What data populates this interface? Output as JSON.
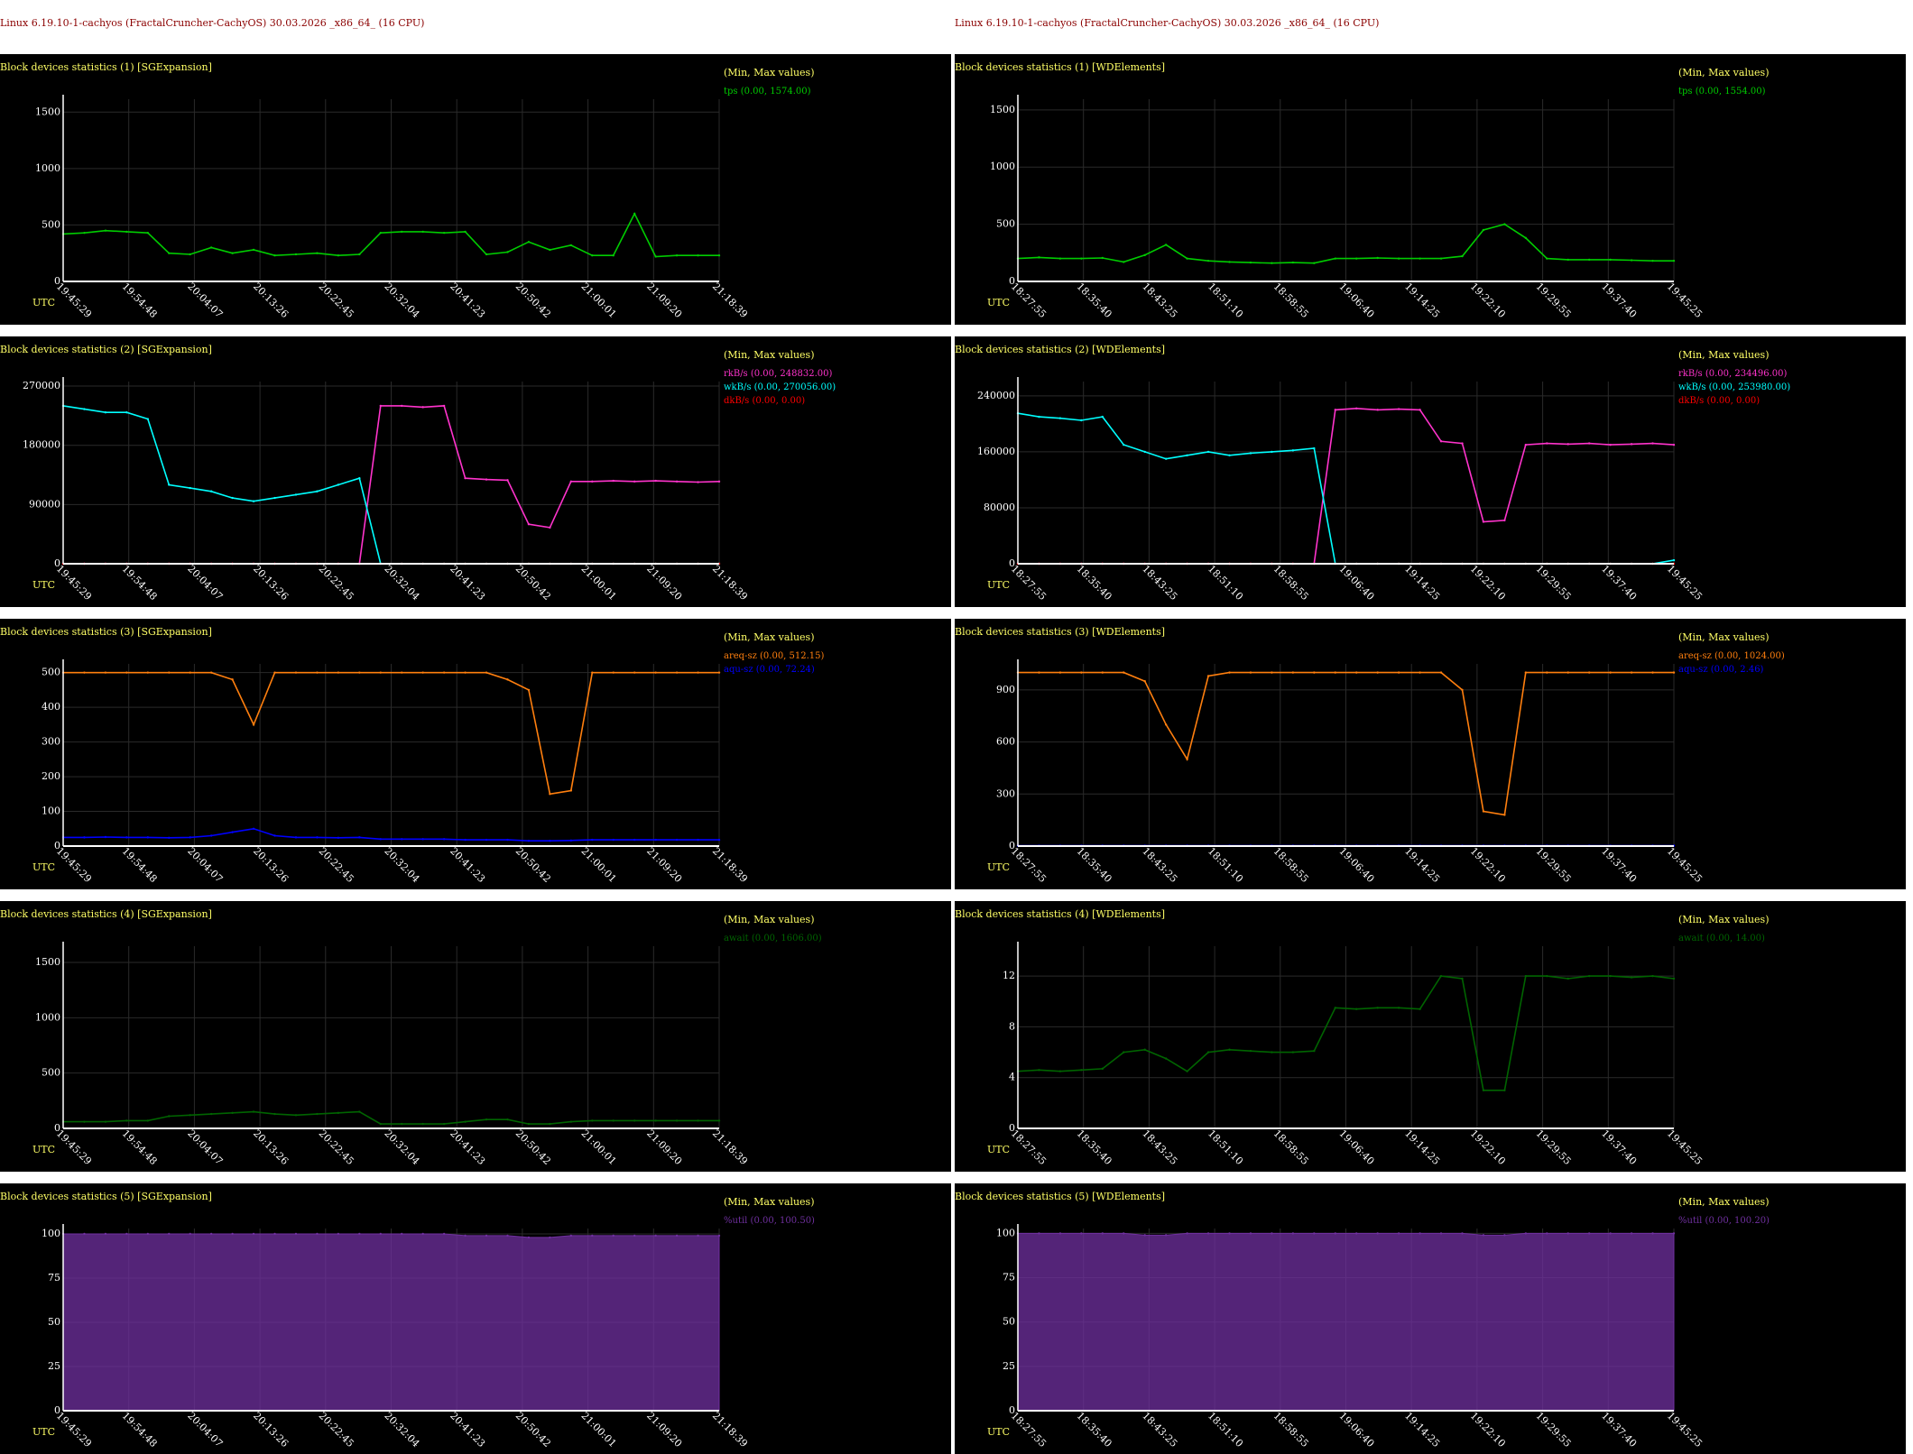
{
  "header": {
    "left": "Linux 6.19.10-1-cachyos (FractalCruncher-CachyOS) 30.03.2026 _x86_64_ (16 CPU)",
    "right": "Linux 6.19.10-1-cachyos (FractalCruncher-CachyOS) 30.03.2026 _x86_64_ (16 CPU)"
  },
  "minmax_label": "(Min, Max values)",
  "utc_label": "UTC",
  "colors": {
    "background": "#000000",
    "header_text": "#8b0000",
    "title_text": "#ffff66",
    "axis": "#ffffff",
    "grid": "#2a2a2a"
  },
  "chart_data": [
    {
      "id": "sg1",
      "type": "line",
      "title": "Block devices statistics (1) [SGExpansion]",
      "yticks": [
        "1500",
        "1000",
        "500",
        "0"
      ],
      "ytick_values": [
        1500,
        1000,
        500,
        0
      ],
      "ylim": [
        0,
        1574
      ],
      "xticks": [
        "19:45:29",
        "19:54:48",
        "20:04:07",
        "20:13:26",
        "20:22:45",
        "20:32:04",
        "20:41:23",
        "20:50:42",
        "21:00:01",
        "21:09:20",
        "21:18:39"
      ],
      "series": [
        {
          "name": "tps (0.00, 1574.00)",
          "color": "#00cc00",
          "values": [
            420,
            430,
            450,
            440,
            430,
            250,
            240,
            300,
            250,
            280,
            230,
            240,
            250,
            230,
            240,
            430,
            440,
            440,
            430,
            440,
            240,
            260,
            350,
            280,
            320,
            230,
            230,
            600,
            220,
            230,
            230,
            230
          ]
        }
      ]
    },
    {
      "id": "wd1",
      "type": "line",
      "title": "Block devices statistics (1) [WDElements]",
      "yticks": [
        "1500",
        "1000",
        "500",
        "0"
      ],
      "ytick_values": [
        1500,
        1000,
        500,
        0
      ],
      "ylim": [
        0,
        1554
      ],
      "xticks": [
        "18:27:55",
        "18:35:40",
        "18:43:25",
        "18:51:10",
        "18:58:55",
        "19:06:40",
        "19:14:25",
        "19:22:10",
        "19:29:55",
        "19:37:40",
        "19:45:25"
      ],
      "series": [
        {
          "name": "tps (0.00, 1554.00)",
          "color": "#00cc00",
          "values": [
            200,
            210,
            200,
            200,
            205,
            170,
            230,
            320,
            200,
            180,
            170,
            165,
            160,
            165,
            160,
            200,
            200,
            205,
            200,
            200,
            200,
            220,
            450,
            500,
            380,
            200,
            190,
            190,
            190,
            185,
            180,
            180
          ]
        }
      ]
    },
    {
      "id": "sg2",
      "type": "line",
      "title": "Block devices statistics (2) [SGExpansion]",
      "yticks": [
        "270000",
        "180000",
        "90000",
        "0"
      ],
      "ytick_values": [
        270000,
        180000,
        90000,
        0
      ],
      "ylim": [
        0,
        270056
      ],
      "xticks": [
        "19:45:29",
        "19:54:48",
        "20:04:07",
        "20:13:26",
        "20:22:45",
        "20:32:04",
        "20:41:23",
        "20:50:42",
        "21:00:01",
        "21:09:20",
        "21:18:39"
      ],
      "series": [
        {
          "name": "rkB/s (0.00, 248832.00)",
          "color": "#ff33cc",
          "values": [
            0,
            0,
            0,
            0,
            0,
            0,
            0,
            0,
            0,
            0,
            0,
            0,
            0,
            0,
            0,
            240000,
            240000,
            238000,
            240000,
            130000,
            128000,
            127000,
            60000,
            55000,
            125000,
            125000,
            126000,
            125000,
            126000,
            125000,
            124000,
            125000
          ]
        },
        {
          "name": "wkB/s (0.00, 270056.00)",
          "color": "#00ffff",
          "values": [
            240000,
            235000,
            230000,
            230000,
            220000,
            120000,
            115000,
            110000,
            100000,
            95000,
            100000,
            105000,
            110000,
            120000,
            130000,
            0,
            0,
            0,
            0,
            0,
            0,
            0,
            0,
            0,
            0,
            0,
            0,
            0,
            0,
            0,
            0,
            0
          ]
        },
        {
          "name": "dkB/s (0.00, 0.00)",
          "color": "#ff0000",
          "values": [
            0,
            0,
            0,
            0,
            0,
            0,
            0,
            0,
            0,
            0,
            0,
            0,
            0,
            0,
            0,
            0,
            0,
            0,
            0,
            0,
            0,
            0,
            0,
            0,
            0,
            0,
            0,
            0,
            0,
            0,
            0,
            0
          ]
        }
      ]
    },
    {
      "id": "wd2",
      "type": "line",
      "title": "Block devices statistics (2) [WDElements]",
      "yticks": [
        "240000",
        "160000",
        "80000",
        "0"
      ],
      "ytick_values": [
        240000,
        160000,
        80000,
        0
      ],
      "ylim": [
        0,
        253980
      ],
      "xticks": [
        "18:27:55",
        "18:35:40",
        "18:43:25",
        "18:51:10",
        "18:58:55",
        "19:06:40",
        "19:14:25",
        "19:22:10",
        "19:29:55",
        "19:37:40",
        "19:45:25"
      ],
      "series": [
        {
          "name": "rkB/s (0.00, 234496.00)",
          "color": "#ff33cc",
          "values": [
            0,
            0,
            0,
            0,
            0,
            0,
            0,
            0,
            0,
            0,
            0,
            0,
            0,
            0,
            0,
            220000,
            222000,
            220000,
            221000,
            220000,
            175000,
            172000,
            60000,
            62000,
            170000,
            172000,
            171000,
            172000,
            170000,
            171000,
            172000,
            170000
          ]
        },
        {
          "name": "wkB/s (0.00, 253980.00)",
          "color": "#00ffff",
          "values": [
            215000,
            210000,
            208000,
            205000,
            210000,
            170000,
            160000,
            150000,
            155000,
            160000,
            155000,
            158000,
            160000,
            162000,
            165000,
            0,
            0,
            0,
            0,
            0,
            0,
            0,
            0,
            0,
            0,
            0,
            0,
            0,
            0,
            0,
            0,
            5000
          ]
        },
        {
          "name": "dkB/s (0.00, 0.00)",
          "color": "#ff0000",
          "values": [
            0,
            0,
            0,
            0,
            0,
            0,
            0,
            0,
            0,
            0,
            0,
            0,
            0,
            0,
            0,
            0,
            0,
            0,
            0,
            0,
            0,
            0,
            0,
            0,
            0,
            0,
            0,
            0,
            0,
            0,
            0,
            0
          ]
        }
      ]
    },
    {
      "id": "sg3",
      "type": "line",
      "title": "Block devices statistics (3) [SGExpansion]",
      "yticks": [
        "500",
        "400",
        "300",
        "200",
        "100",
        "0"
      ],
      "ytick_values": [
        500,
        400,
        300,
        200,
        100,
        0
      ],
      "ylim": [
        0,
        512.15
      ],
      "xticks": [
        "19:45:29",
        "19:54:48",
        "20:04:07",
        "20:13:26",
        "20:22:45",
        "20:32:04",
        "20:41:23",
        "20:50:42",
        "21:00:01",
        "21:09:20",
        "21:18:39"
      ],
      "series": [
        {
          "name": "areq-sz (0.00, 512.15)",
          "color": "#ff7f0e",
          "values": [
            500,
            500,
            500,
            500,
            500,
            500,
            500,
            500,
            480,
            350,
            500,
            500,
            500,
            500,
            500,
            500,
            500,
            500,
            500,
            500,
            500,
            480,
            450,
            150,
            160,
            500,
            500,
            500,
            500,
            500,
            500,
            500
          ]
        },
        {
          "name": "aqu-sz (0.00, 72.24)",
          "color": "#0000ff",
          "values": [
            25,
            25,
            26,
            25,
            25,
            24,
            25,
            30,
            40,
            50,
            30,
            25,
            25,
            24,
            25,
            20,
            20,
            20,
            20,
            18,
            18,
            18,
            15,
            15,
            16,
            18,
            18,
            18,
            18,
            18,
            18,
            18
          ]
        }
      ]
    },
    {
      "id": "wd3",
      "type": "line",
      "title": "Block devices statistics (3) [WDElements]",
      "yticks": [
        "900",
        "600",
        "300",
        "0"
      ],
      "ytick_values": [
        900,
        600,
        300,
        0
      ],
      "ylim": [
        0,
        1024
      ],
      "xticks": [
        "18:27:55",
        "18:35:40",
        "18:43:25",
        "18:51:10",
        "18:58:55",
        "19:06:40",
        "19:14:25",
        "19:22:10",
        "19:29:55",
        "19:37:40",
        "19:45:25"
      ],
      "series": [
        {
          "name": "areq-sz (0.00, 1024.00)",
          "color": "#ff7f0e",
          "values": [
            1000,
            1000,
            1000,
            1000,
            1000,
            1000,
            950,
            700,
            500,
            980,
            1000,
            1000,
            1000,
            1000,
            1000,
            1000,
            1000,
            1000,
            1000,
            1000,
            1000,
            900,
            200,
            180,
            1000,
            1000,
            1000,
            1000,
            1000,
            1000,
            1000,
            1000
          ]
        },
        {
          "name": "aqu-sz (0.00, 2.46)",
          "color": "#0000ff",
          "values": [
            2,
            2,
            2,
            2,
            2,
            2,
            2,
            2,
            2,
            2,
            2,
            2,
            2,
            2,
            2,
            2,
            2,
            2,
            2,
            2,
            2,
            2,
            2,
            2,
            2,
            2,
            2,
            2,
            2,
            2,
            2,
            2
          ]
        }
      ]
    },
    {
      "id": "sg4",
      "type": "line",
      "title": "Block devices statistics (4) [SGExpansion]",
      "yticks": [
        "1500",
        "1000",
        "500",
        "0"
      ],
      "ytick_values": [
        1500,
        1000,
        500,
        0
      ],
      "ylim": [
        0,
        1606
      ],
      "xticks": [
        "19:45:29",
        "19:54:48",
        "20:04:07",
        "20:13:26",
        "20:22:45",
        "20:32:04",
        "20:41:23",
        "20:50:42",
        "21:00:01",
        "21:09:20",
        "21:18:39"
      ],
      "series": [
        {
          "name": "await (0.00, 1606.00)",
          "color": "#006400",
          "values": [
            60,
            60,
            60,
            70,
            70,
            110,
            120,
            130,
            140,
            150,
            130,
            120,
            130,
            140,
            150,
            40,
            40,
            40,
            40,
            60,
            80,
            80,
            40,
            40,
            60,
            70,
            70,
            70,
            70,
            70,
            70,
            70
          ]
        }
      ]
    },
    {
      "id": "wd4",
      "type": "line",
      "title": "Block devices statistics (4) [WDElements]",
      "yticks": [
        "12",
        "8",
        "4",
        "0"
      ],
      "ytick_values": [
        12,
        8,
        4,
        0
      ],
      "ylim": [
        0,
        14
      ],
      "xticks": [
        "18:27:55",
        "18:35:40",
        "18:43:25",
        "18:51:10",
        "18:58:55",
        "19:06:40",
        "19:14:25",
        "19:22:10",
        "19:29:55",
        "19:37:40",
        "19:45:25"
      ],
      "series": [
        {
          "name": "await (0.00, 14.00)",
          "color": "#006400",
          "values": [
            4.5,
            4.6,
            4.5,
            4.6,
            4.7,
            6,
            6.2,
            5.5,
            4.5,
            6,
            6.2,
            6.1,
            6,
            6,
            6.1,
            9.5,
            9.4,
            9.5,
            9.5,
            9.4,
            12,
            11.8,
            3,
            3,
            12,
            12,
            11.8,
            12,
            12,
            11.9,
            12,
            11.8
          ]
        }
      ]
    },
    {
      "id": "sg5",
      "type": "area",
      "title": "Block devices statistics (5) [SGExpansion]",
      "yticks": [
        "100",
        "75",
        "50",
        "25",
        "0"
      ],
      "ytick_values": [
        100,
        75,
        50,
        25,
        0
      ],
      "ylim": [
        0,
        100.5
      ],
      "xticks": [
        "19:45:29",
        "19:54:48",
        "20:04:07",
        "20:13:26",
        "20:22:45",
        "20:32:04",
        "20:41:23",
        "20:50:42",
        "21:00:01",
        "21:09:20",
        "21:18:39"
      ],
      "series": [
        {
          "name": "%util (0.00, 100.50)",
          "color": "#7030a0",
          "values": [
            100,
            100,
            100,
            100,
            100,
            100,
            100,
            100,
            100,
            100,
            100,
            100,
            100,
            100,
            100,
            100,
            100,
            100,
            100,
            99,
            99,
            99,
            98,
            98,
            99,
            99,
            99,
            99,
            99,
            99,
            99,
            99
          ]
        }
      ]
    },
    {
      "id": "wd5",
      "type": "area",
      "title": "Block devices statistics (5) [WDElements]",
      "yticks": [
        "100",
        "75",
        "50",
        "25",
        "0"
      ],
      "ytick_values": [
        100,
        75,
        50,
        25,
        0
      ],
      "ylim": [
        0,
        100.2
      ],
      "xticks": [
        "18:27:55",
        "18:35:40",
        "18:43:25",
        "18:51:10",
        "18:58:55",
        "19:06:40",
        "19:14:25",
        "19:22:10",
        "19:29:55",
        "19:37:40",
        "19:45:25"
      ],
      "series": [
        {
          "name": "%util (0.00, 100.20)",
          "color": "#7030a0",
          "values": [
            100,
            100,
            100,
            100,
            100,
            100,
            99,
            99,
            100,
            100,
            100,
            100,
            100,
            100,
            100,
            100,
            100,
            100,
            100,
            100,
            100,
            100,
            99,
            99,
            100,
            100,
            100,
            100,
            100,
            100,
            100,
            100
          ]
        }
      ]
    }
  ]
}
